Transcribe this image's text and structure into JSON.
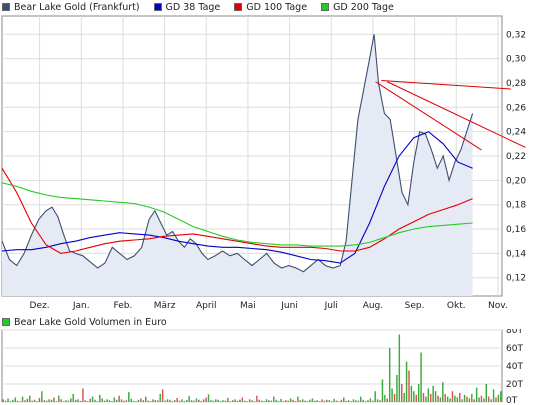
{
  "legend": {
    "price": {
      "label": "Bear Lake Gold (Frankfurt)",
      "color": "#3c4f70"
    },
    "gd38": {
      "label": "GD 38 Tage",
      "color": "#0000c8"
    },
    "gd100": {
      "label": "GD 100 Tage",
      "color": "#e00000"
    },
    "gd200": {
      "label": "GD 200 Tage",
      "color": "#22cc22"
    }
  },
  "volume_legend": {
    "label": "Bear Lake Gold Volumen in Euro",
    "color": "#22cc22"
  },
  "chart_data": [
    {
      "type": "line",
      "x_labels": [
        "Dez.",
        "Jan.",
        "Feb.",
        "März",
        "April",
        "Mai",
        "Juni",
        "Juli",
        "Aug.",
        "Sep.",
        "Okt.",
        "Nov."
      ],
      "y_ticks": [
        "0,12",
        "0,14",
        "0,16",
        "0,18",
        "0,20",
        "0,22",
        "0,24",
        "0,26",
        "0,28",
        "0,30",
        "0,32"
      ],
      "ylim": [
        0.105,
        0.335
      ],
      "grid": true,
      "series": [
        {
          "name": "Bear Lake Gold (Frankfurt)",
          "color": "#3c4f70",
          "fill": "#e6eaf5",
          "points": [
            [
              0,
              0.15
            ],
            [
              0.5,
              0.135
            ],
            [
              1,
              0.13
            ],
            [
              1.5,
              0.14
            ],
            [
              2,
              0.155
            ],
            [
              2.5,
              0.168
            ],
            [
              3,
              0.175
            ],
            [
              3.4,
              0.178
            ],
            [
              3.8,
              0.17
            ],
            [
              4.2,
              0.155
            ],
            [
              4.6,
              0.142
            ],
            [
              5.0,
              0.14
            ],
            [
              5.5,
              0.138
            ],
            [
              6,
              0.133
            ],
            [
              6.5,
              0.128
            ],
            [
              7,
              0.132
            ],
            [
              7.5,
              0.145
            ],
            [
              8,
              0.14
            ],
            [
              8.5,
              0.135
            ],
            [
              9,
              0.138
            ],
            [
              9.5,
              0.145
            ],
            [
              10,
              0.168
            ],
            [
              10.4,
              0.175
            ],
            [
              10.8,
              0.165
            ],
            [
              11.2,
              0.155
            ],
            [
              11.6,
              0.158
            ],
            [
              12,
              0.15
            ],
            [
              12.4,
              0.145
            ],
            [
              12.8,
              0.152
            ],
            [
              13.2,
              0.148
            ],
            [
              13.6,
              0.14
            ],
            [
              14,
              0.135
            ],
            [
              14.5,
              0.138
            ],
            [
              15,
              0.142
            ],
            [
              15.5,
              0.138
            ],
            [
              16,
              0.14
            ],
            [
              16.5,
              0.135
            ],
            [
              17,
              0.13
            ],
            [
              17.5,
              0.135
            ],
            [
              18,
              0.14
            ],
            [
              18.5,
              0.132
            ],
            [
              19,
              0.128
            ],
            [
              19.5,
              0.13
            ],
            [
              20,
              0.128
            ],
            [
              20.5,
              0.125
            ],
            [
              21,
              0.13
            ],
            [
              21.5,
              0.135
            ],
            [
              22,
              0.13
            ],
            [
              22.5,
              0.128
            ],
            [
              23,
              0.13
            ],
            [
              23.4,
              0.15
            ],
            [
              23.8,
              0.2
            ],
            [
              24.2,
              0.25
            ],
            [
              24.6,
              0.275
            ],
            [
              25.0,
              0.3
            ],
            [
              25.3,
              0.32
            ],
            [
              25.6,
              0.28
            ],
            [
              26.0,
              0.255
            ],
            [
              26.4,
              0.25
            ],
            [
              26.8,
              0.22
            ],
            [
              27.2,
              0.19
            ],
            [
              27.6,
              0.18
            ],
            [
              28,
              0.215
            ],
            [
              28.4,
              0.24
            ],
            [
              28.8,
              0.238
            ],
            [
              29.2,
              0.225
            ],
            [
              29.6,
              0.21
            ],
            [
              30,
              0.22
            ],
            [
              30.4,
              0.2
            ],
            [
              30.8,
              0.215
            ],
            [
              31.2,
              0.225
            ],
            [
              31.6,
              0.24
            ],
            [
              32,
              0.255
            ]
          ]
        },
        {
          "name": "GD 38 Tage",
          "color": "#0000c8",
          "points": [
            [
              0,
              0.142
            ],
            [
              1,
              0.143
            ],
            [
              2,
              0.143
            ],
            [
              3,
              0.145
            ],
            [
              4,
              0.148
            ],
            [
              5,
              0.15
            ],
            [
              6,
              0.153
            ],
            [
              7,
              0.155
            ],
            [
              8,
              0.157
            ],
            [
              9,
              0.156
            ],
            [
              10,
              0.155
            ],
            [
              11,
              0.153
            ],
            [
              12,
              0.15
            ],
            [
              13,
              0.148
            ],
            [
              14,
              0.146
            ],
            [
              15,
              0.145
            ],
            [
              16,
              0.145
            ],
            [
              17,
              0.144
            ],
            [
              18,
              0.143
            ],
            [
              19,
              0.141
            ],
            [
              20,
              0.138
            ],
            [
              21,
              0.135
            ],
            [
              22,
              0.134
            ],
            [
              23,
              0.132
            ],
            [
              24,
              0.14
            ],
            [
              25,
              0.165
            ],
            [
              26,
              0.195
            ],
            [
              27,
              0.22
            ],
            [
              28,
              0.235
            ],
            [
              29,
              0.24
            ],
            [
              30,
              0.23
            ],
            [
              31,
              0.215
            ],
            [
              32,
              0.21
            ]
          ]
        },
        {
          "name": "GD 100 Tage",
          "color": "#e00000",
          "points": [
            [
              0,
              0.21
            ],
            [
              1,
              0.19
            ],
            [
              2,
              0.165
            ],
            [
              3,
              0.147
            ],
            [
              4,
              0.14
            ],
            [
              5,
              0.142
            ],
            [
              6,
              0.145
            ],
            [
              7,
              0.148
            ],
            [
              8,
              0.15
            ],
            [
              9,
              0.151
            ],
            [
              10,
              0.152
            ],
            [
              11,
              0.154
            ],
            [
              12,
              0.155
            ],
            [
              13,
              0.156
            ],
            [
              14,
              0.154
            ],
            [
              15,
              0.152
            ],
            [
              16,
              0.15
            ],
            [
              17,
              0.148
            ],
            [
              18,
              0.146
            ],
            [
              19,
              0.145
            ],
            [
              20,
              0.145
            ],
            [
              21,
              0.145
            ],
            [
              22,
              0.144
            ],
            [
              23,
              0.142
            ],
            [
              24,
              0.142
            ],
            [
              25,
              0.145
            ],
            [
              26,
              0.152
            ],
            [
              27,
              0.16
            ],
            [
              28,
              0.166
            ],
            [
              29,
              0.172
            ],
            [
              30,
              0.176
            ],
            [
              31,
              0.18
            ],
            [
              32,
              0.185
            ]
          ]
        },
        {
          "name": "GD 200 Tage",
          "color": "#22cc22",
          "points": [
            [
              0,
              0.198
            ],
            [
              1,
              0.195
            ],
            [
              2,
              0.191
            ],
            [
              3,
              0.188
            ],
            [
              4,
              0.186
            ],
            [
              5,
              0.185
            ],
            [
              6,
              0.184
            ],
            [
              7,
              0.183
            ],
            [
              8,
              0.182
            ],
            [
              9,
              0.181
            ],
            [
              10,
              0.178
            ],
            [
              11,
              0.174
            ],
            [
              12,
              0.168
            ],
            [
              13,
              0.162
            ],
            [
              14,
              0.158
            ],
            [
              15,
              0.154
            ],
            [
              16,
              0.151
            ],
            [
              17,
              0.149
            ],
            [
              18,
              0.148
            ],
            [
              19,
              0.147
            ],
            [
              20,
              0.147
            ],
            [
              21,
              0.146
            ],
            [
              22,
              0.146
            ],
            [
              23,
              0.146
            ],
            [
              24,
              0.147
            ],
            [
              25,
              0.149
            ],
            [
              26,
              0.153
            ],
            [
              27,
              0.157
            ],
            [
              28,
              0.16
            ],
            [
              29,
              0.162
            ],
            [
              30,
              0.163
            ],
            [
              31,
              0.164
            ],
            [
              32,
              0.165
            ]
          ]
        }
      ],
      "trendlines": [
        {
          "color": "#e00000",
          "points": [
            [
              25.4,
              0.281
            ],
            [
              32.6,
              0.225
            ]
          ]
        },
        {
          "color": "#e00000",
          "points": [
            [
              25.8,
              0.282
            ],
            [
              34.6,
              0.275
            ]
          ]
        },
        {
          "color": "#e00000",
          "points": [
            [
              26.2,
              0.281
            ],
            [
              35.6,
              0.227
            ]
          ]
        }
      ]
    },
    {
      "type": "bar",
      "title": "Bear Lake Gold Volumen in Euro",
      "y_ticks": [
        "0T",
        "20T",
        "40T",
        "60T",
        "80T"
      ],
      "ylim": [
        0,
        80000
      ],
      "values": [
        3000,
        1500,
        4000,
        1000,
        2500,
        5000,
        1200,
        800,
        6000,
        2000,
        3500,
        7000,
        1500,
        2500,
        900,
        4500,
        12000,
        2000,
        1500,
        3000,
        2500,
        5000,
        1000,
        7000,
        3000,
        800,
        2000,
        1500,
        4000,
        9000,
        2500,
        3000,
        1200,
        15000,
        2000,
        1000,
        3500,
        6000,
        2500,
        1000,
        8000,
        4000,
        1500,
        3000,
        2000,
        1000,
        5000,
        2500,
        7000,
        3000,
        1500,
        2000,
        11000,
        3500,
        1200,
        900,
        2500,
        4000,
        2000,
        6000,
        1500,
        1000,
        3000,
        2200,
        1800,
        9000,
        14000,
        1500,
        3000,
        2500,
        1000,
        2000,
        4500,
        1500,
        3000,
        1000,
        2200,
        6500,
        2000,
        1500,
        4000,
        2500,
        1200,
        3000,
        5000,
        8500,
        2000,
        1500,
        3000,
        2500,
        1000,
        2000,
        1500,
        4500,
        1000,
        2000,
        3000,
        1200,
        2500,
        5000,
        1500,
        800,
        3000,
        2000,
        1000,
        7000,
        2500,
        1500,
        1000,
        3000,
        2000,
        1500,
        6000,
        2500,
        1200,
        3500,
        1000,
        2000,
        1500,
        4000,
        2500,
        1000,
        6000,
        2000,
        3000,
        1500,
        1000,
        2500,
        4000,
        1500,
        2000,
        1000,
        3000,
        1500,
        2500,
        2000,
        1000,
        3500,
        1500,
        800,
        2500,
        5000,
        1200,
        2000,
        1000,
        3000,
        2000,
        1500,
        6000,
        2500,
        1000,
        2000,
        4000,
        1500,
        12000,
        3000,
        2000,
        25000,
        8000,
        4000,
        60000,
        15000,
        9000,
        30000,
        75000,
        20000,
        10000,
        45000,
        35000,
        18000,
        12000,
        8000,
        20000,
        55000,
        10000,
        6000,
        15000,
        9000,
        18000,
        12000,
        7000,
        5000,
        22000,
        9000,
        6000,
        4000,
        12000,
        7000,
        5000,
        10000,
        3000,
        8000,
        6000,
        4000,
        9000,
        3000,
        16000,
        5000,
        7000,
        4000,
        20000,
        6000,
        3000,
        14000,
        5000,
        8000,
        12000
      ]
    }
  ]
}
